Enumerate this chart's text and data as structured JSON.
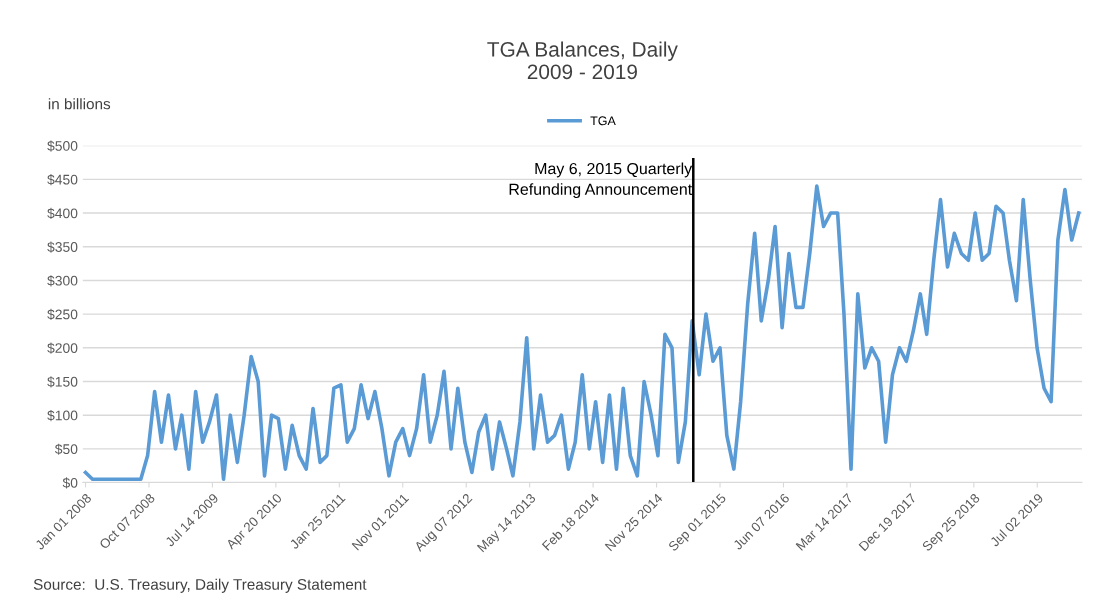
{
  "chart_data": {
    "type": "line",
    "title": "TGA Balances, Daily\n2009 - 2019",
    "ylabel": "in billions",
    "x": [
      "2008-01",
      "2008-02",
      "2008-03",
      "2008-04",
      "2008-05",
      "2008-06",
      "2008-07",
      "2008-08",
      "2008-09",
      "2008-10",
      "2008-11",
      "2008-12",
      "2009-01",
      "2009-02",
      "2009-03",
      "2009-04",
      "2009-05",
      "2009-06",
      "2009-07",
      "2009-08",
      "2009-09",
      "2009-10",
      "2009-11",
      "2009-12",
      "2010-01",
      "2010-02",
      "2010-03",
      "2010-04",
      "2010-05",
      "2010-06",
      "2010-07",
      "2010-08",
      "2010-09",
      "2010-10",
      "2010-11",
      "2010-12",
      "2011-01",
      "2011-02",
      "2011-03",
      "2011-04",
      "2011-05",
      "2011-06",
      "2011-07",
      "2011-08",
      "2011-09",
      "2011-10",
      "2011-11",
      "2011-12",
      "2012-01",
      "2012-02",
      "2012-03",
      "2012-04",
      "2012-05",
      "2012-06",
      "2012-07",
      "2012-08",
      "2012-09",
      "2012-10",
      "2012-11",
      "2012-12",
      "2013-01",
      "2013-02",
      "2013-03",
      "2013-04",
      "2013-05",
      "2013-06",
      "2013-07",
      "2013-08",
      "2013-09",
      "2013-10",
      "2013-11",
      "2013-12",
      "2014-01",
      "2014-02",
      "2014-03",
      "2014-04",
      "2014-05",
      "2014-06",
      "2014-07",
      "2014-08",
      "2014-09",
      "2014-10",
      "2014-11",
      "2014-12",
      "2015-01",
      "2015-02",
      "2015-03",
      "2015-04",
      "2015-05",
      "2015-06",
      "2015-07",
      "2015-08",
      "2015-09",
      "2015-10",
      "2015-11",
      "2015-12",
      "2016-01",
      "2016-02",
      "2016-03",
      "2016-04",
      "2016-05",
      "2016-06",
      "2016-07",
      "2016-08",
      "2016-09",
      "2016-10",
      "2016-11",
      "2016-12",
      "2017-01",
      "2017-02",
      "2017-03",
      "2017-04",
      "2017-05",
      "2017-06",
      "2017-07",
      "2017-08",
      "2017-09",
      "2017-10",
      "2017-11",
      "2017-12",
      "2018-01",
      "2018-02",
      "2018-03",
      "2018-04",
      "2018-05",
      "2018-06",
      "2018-07",
      "2018-08",
      "2018-09",
      "2018-10",
      "2018-11",
      "2018-12",
      "2019-01",
      "2019-02",
      "2019-03",
      "2019-04",
      "2019-05",
      "2019-06",
      "2019-07",
      "2019-08",
      "2019-09",
      "2019-10",
      "2019-11",
      "2019-12",
      "2020-01"
    ],
    "series": [
      {
        "name": "TGA",
        "color": "#5b9bd5",
        "values": [
          15,
          5,
          5,
          5,
          5,
          5,
          5,
          5,
          5,
          40,
          135,
          60,
          130,
          50,
          100,
          20,
          135,
          60,
          90,
          130,
          5,
          100,
          30,
          100,
          187,
          150,
          10,
          100,
          95,
          20,
          85,
          40,
          20,
          110,
          30,
          40,
          140,
          145,
          60,
          80,
          145,
          95,
          135,
          80,
          10,
          60,
          80,
          40,
          80,
          160,
          60,
          100,
          165,
          50,
          140,
          60,
          15,
          75,
          100,
          20,
          90,
          50,
          10,
          90,
          215,
          50,
          130,
          60,
          70,
          100,
          20,
          60,
          160,
          50,
          120,
          30,
          130,
          20,
          140,
          40,
          10,
          150,
          100,
          40,
          220,
          200,
          30,
          90,
          240,
          160,
          250,
          180,
          200,
          70,
          20,
          120,
          265,
          370,
          240,
          300,
          380,
          230,
          340,
          260,
          260,
          340,
          440,
          380,
          400,
          400,
          250,
          20,
          280,
          170,
          200,
          180,
          60,
          160,
          200,
          180,
          225,
          280,
          220,
          330,
          420,
          320,
          370,
          340,
          330,
          400,
          330,
          340,
          410,
          400,
          330,
          270,
          420,
          300,
          200,
          140,
          120,
          360,
          435,
          360,
          400
        ]
      }
    ],
    "xlim": [
      "2007-12-20",
      "2020-01-15"
    ],
    "xticks": [
      {
        "value": "2008-01-01",
        "label": "Jan 01 2008"
      },
      {
        "value": "2008-10-07",
        "label": "Oct 07 2008"
      },
      {
        "value": "2009-07-14",
        "label": "Jul 14 2009"
      },
      {
        "value": "2010-04-20",
        "label": "Apr 20 2010"
      },
      {
        "value": "2011-01-25",
        "label": "Jan 25 2011"
      },
      {
        "value": "2011-11-01",
        "label": "Nov 01 2011"
      },
      {
        "value": "2012-08-07",
        "label": "Aug 07 2012"
      },
      {
        "value": "2013-05-14",
        "label": "May 14 2013"
      },
      {
        "value": "2014-02-18",
        "label": "Feb 18 2014"
      },
      {
        "value": "2014-11-25",
        "label": "Nov 25 2014"
      },
      {
        "value": "2015-09-01",
        "label": "Sep 01 2015"
      },
      {
        "value": "2016-06-07",
        "label": "Jun 07 2016"
      },
      {
        "value": "2017-03-14",
        "label": "Mar 14 2017"
      },
      {
        "value": "2017-12-19",
        "label": "Dec 19 2017"
      },
      {
        "value": "2018-09-25",
        "label": "Sep 25 2018"
      },
      {
        "value": "2019-07-02",
        "label": "Jul 02 2019"
      }
    ],
    "ylim": [
      0,
      500
    ],
    "yticks": [
      {
        "value": 0,
        "label": "$0"
      },
      {
        "value": 50,
        "label": "$50"
      },
      {
        "value": 100,
        "label": "$100"
      },
      {
        "value": 150,
        "label": "$150"
      },
      {
        "value": 200,
        "label": "$200"
      },
      {
        "value": 250,
        "label": "$250"
      },
      {
        "value": 300,
        "label": "$300"
      },
      {
        "value": 350,
        "label": "$350"
      },
      {
        "value": 400,
        "label": "$400"
      },
      {
        "value": 450,
        "label": "$450"
      },
      {
        "value": 500,
        "label": "$500"
      }
    ],
    "ref_lines": [
      {
        "axis": "x",
        "value": "2015-05-06",
        "label": "May 6, 2015 Quarterly\nRefunding Announcement",
        "color": "#000000"
      }
    ],
    "annotations": [
      "Source:  U.S. Treasury, Daily Treasury Statement"
    ],
    "grid": "y",
    "legend": "top",
    "marker": "none",
    "line_style": "solid"
  }
}
